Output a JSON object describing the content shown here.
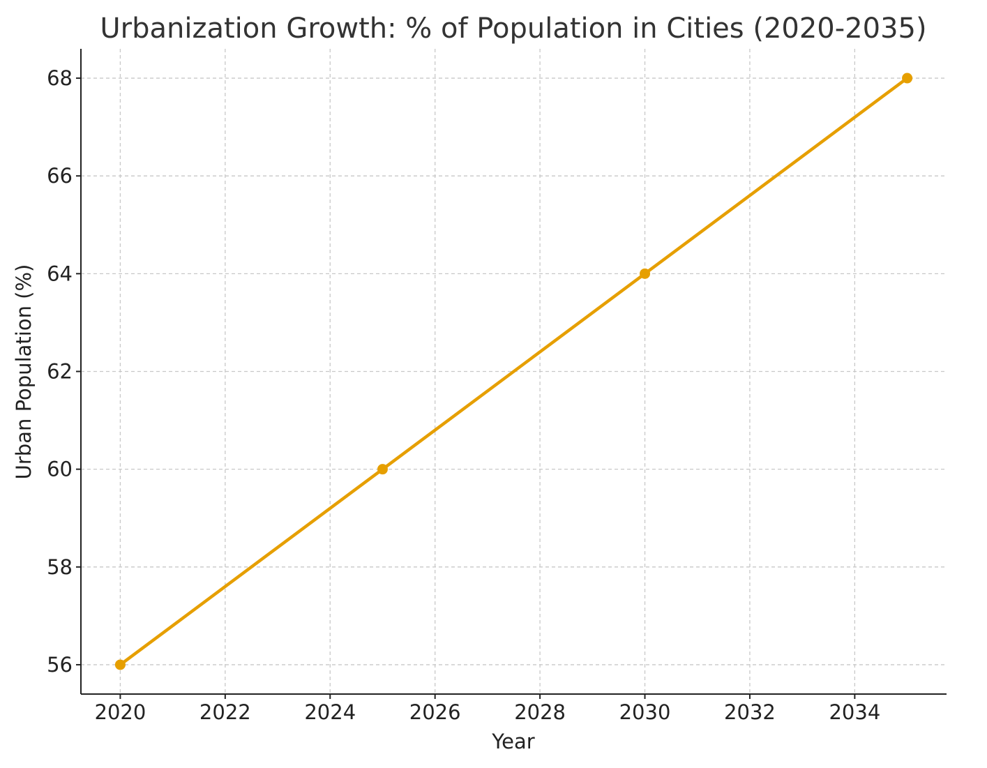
{
  "chart_data": {
    "type": "line",
    "title": "Urbanization Growth: % of Population in Cities (2020-2035)",
    "xlabel": "Year",
    "ylabel": "Urban Population (%)",
    "xlim": [
      2019.25,
      2035.75
    ],
    "ylim": [
      55.4,
      68.6
    ],
    "xticks": [
      2020,
      2022,
      2024,
      2026,
      2028,
      2030,
      2032,
      2034
    ],
    "yticks": [
      56,
      58,
      60,
      62,
      64,
      66,
      68
    ],
    "grid": true,
    "series": [
      {
        "name": "Urban Population",
        "color": "#E69F00",
        "x": [
          2020,
          2025,
          2030,
          2035
        ],
        "y": [
          56,
          60,
          64,
          68
        ]
      }
    ]
  }
}
